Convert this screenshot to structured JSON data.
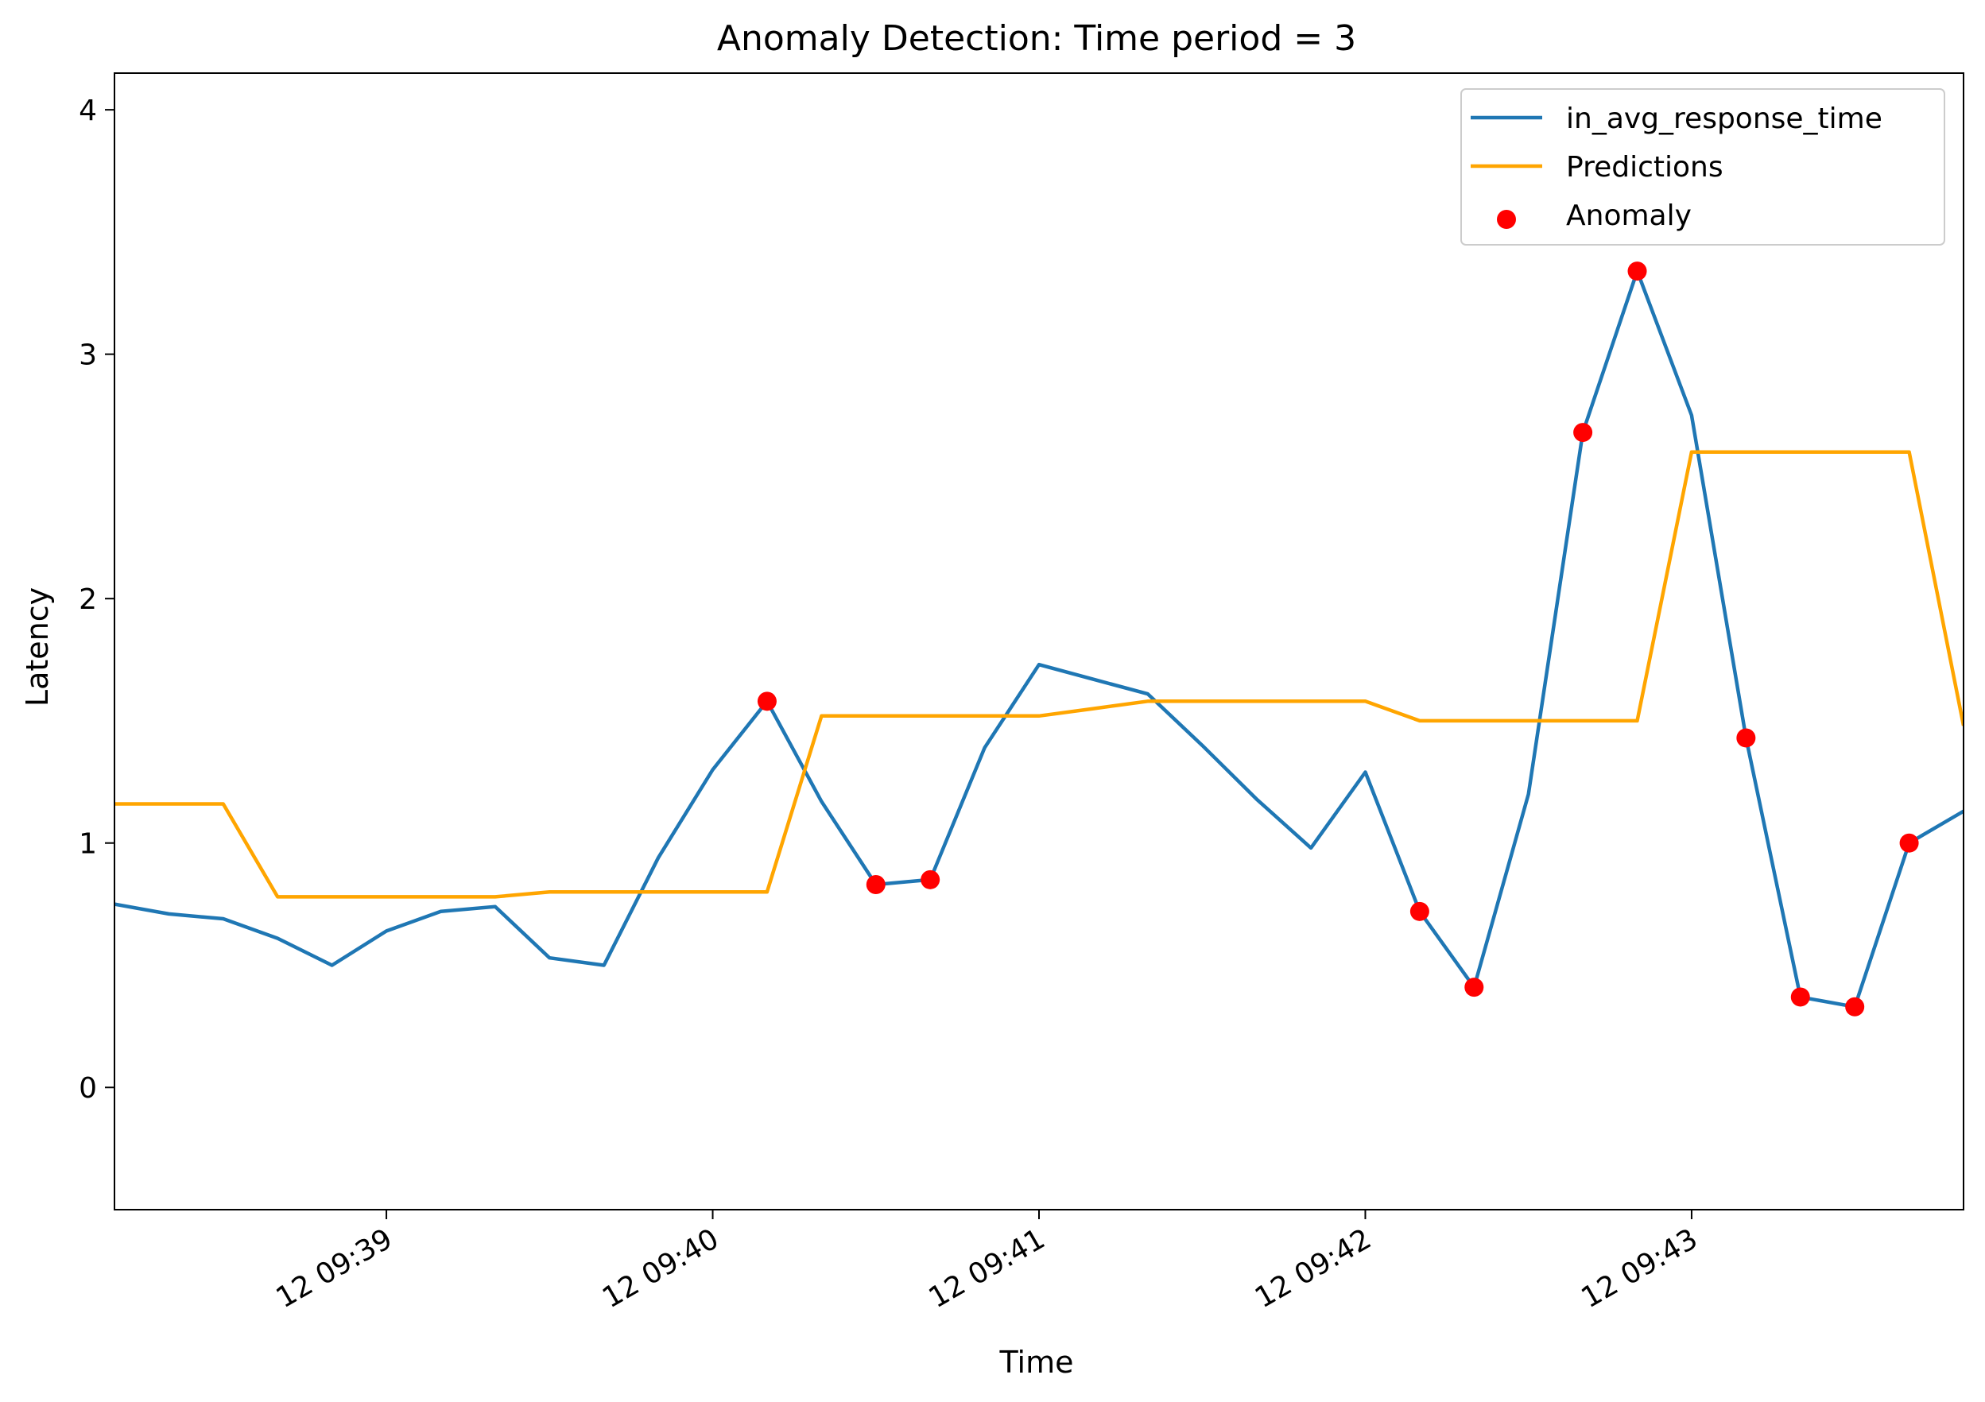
{
  "chart_data": {
    "type": "line",
    "title": "Anomaly Detection: Time period = 3",
    "xlabel": "Time",
    "ylabel": "Latency",
    "x_unit": "seconds",
    "xlim": [
      "09:38:10",
      "09:43:50"
    ],
    "ylim": [
      -0.5,
      4.15
    ],
    "yticks": [
      0,
      1,
      2,
      3,
      4
    ],
    "ytick_labels": [
      "0",
      "1",
      "2",
      "3",
      "4"
    ],
    "xticks": [
      "09:39:00",
      "09:40:00",
      "09:41:00",
      "09:42:00",
      "09:43:00"
    ],
    "xtick_labels": [
      "12 09:39",
      "12 09:40",
      "12 09:41",
      "12 09:42",
      "12 09:43"
    ],
    "grid": false,
    "legend_position": "top-right",
    "series": [
      {
        "name": "in_avg_response_time",
        "kind": "line",
        "color": "#1f77b4",
        "x": [
          "09:38:10",
          "09:38:20",
          "09:38:30",
          "09:38:40",
          "09:38:50",
          "09:39:00",
          "09:39:10",
          "09:39:20",
          "09:39:30",
          "09:39:40",
          "09:39:50",
          "09:40:00",
          "09:40:10",
          "09:40:20",
          "09:40:30",
          "09:40:40",
          "09:40:50",
          "09:41:00",
          "09:41:10",
          "09:41:20",
          "09:41:30",
          "09:41:40",
          "09:41:50",
          "09:42:00",
          "09:42:10",
          "09:42:20",
          "09:42:30",
          "09:42:40",
          "09:42:50",
          "09:43:00",
          "09:43:10",
          "09:43:20",
          "09:43:30",
          "09:43:40",
          "09:43:50"
        ],
        "y": [
          0.75,
          0.71,
          0.69,
          0.61,
          0.5,
          0.64,
          0.72,
          0.74,
          0.53,
          0.5,
          0.94,
          1.3,
          1.58,
          1.17,
          0.83,
          0.85,
          1.39,
          1.73,
          1.67,
          1.61,
          1.4,
          1.18,
          0.98,
          1.29,
          0.72,
          0.41,
          1.2,
          2.68,
          3.34,
          2.75,
          1.43,
          0.37,
          0.33,
          1.0,
          1.13
        ]
      },
      {
        "name": "Predictions",
        "kind": "line",
        "color": "#ffa500",
        "x": [
          "09:38:10",
          "09:38:20",
          "09:38:30",
          "09:38:40",
          "09:38:50",
          "09:39:00",
          "09:39:10",
          "09:39:20",
          "09:39:30",
          "09:39:40",
          "09:39:50",
          "09:40:00",
          "09:40:10",
          "09:40:20",
          "09:40:30",
          "09:40:40",
          "09:40:50",
          "09:41:00",
          "09:41:10",
          "09:41:20",
          "09:41:30",
          "09:41:40",
          "09:41:50",
          "09:42:00",
          "09:42:10",
          "09:42:20",
          "09:42:30",
          "09:42:40",
          "09:42:50",
          "09:43:00",
          "09:43:10",
          "09:43:20",
          "09:43:30",
          "09:43:40",
          "09:43:50"
        ],
        "y": [
          1.16,
          1.16,
          1.16,
          0.78,
          0.78,
          0.78,
          0.78,
          0.78,
          0.8,
          0.8,
          0.8,
          0.8,
          0.8,
          1.52,
          1.52,
          1.52,
          1.52,
          1.52,
          1.55,
          1.58,
          1.58,
          1.58,
          1.58,
          1.58,
          1.5,
          1.5,
          1.5,
          1.5,
          1.5,
          2.6,
          2.6,
          2.6,
          2.6,
          2.6,
          1.48
        ]
      },
      {
        "name": "Anomaly",
        "kind": "scatter",
        "color": "#ff0000",
        "x": [
          "09:40:10",
          "09:40:30",
          "09:40:40",
          "09:42:10",
          "09:42:20",
          "09:42:40",
          "09:42:50",
          "09:43:10",
          "09:43:20",
          "09:43:30",
          "09:43:40"
        ],
        "y": [
          1.58,
          0.83,
          0.85,
          0.72,
          0.41,
          2.68,
          3.34,
          1.43,
          0.37,
          0.33,
          1.0
        ]
      }
    ]
  }
}
